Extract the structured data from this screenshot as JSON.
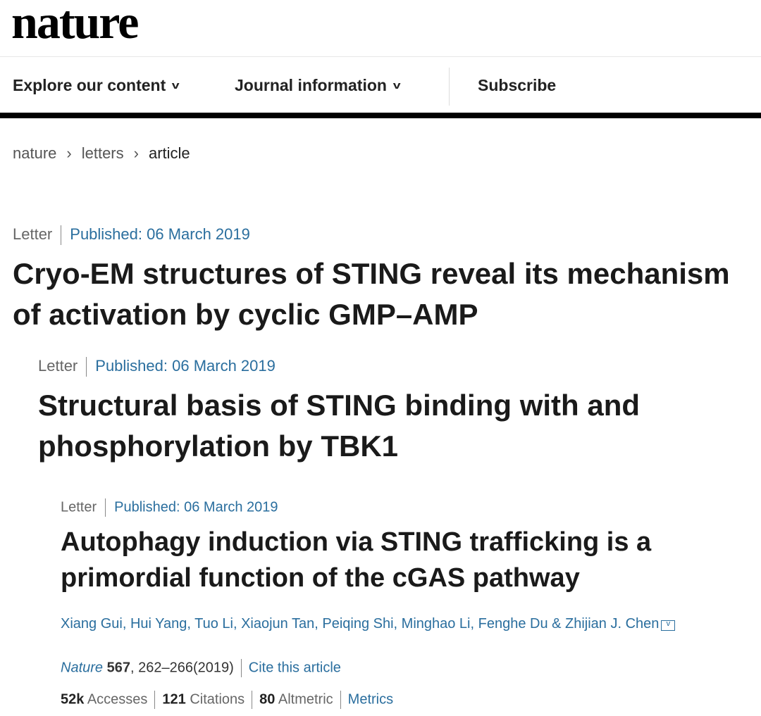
{
  "header": {
    "logo": "nature",
    "nav": [
      "Explore our content",
      "Journal information",
      "Subscribe"
    ]
  },
  "breadcrumb": [
    "nature",
    "letters",
    "article"
  ],
  "articles": [
    {
      "type": "Letter",
      "published": "Published: 06 March 2019",
      "title": "Cryo-EM structures of STING reveal its mechanism of activation by cyclic GMP–AMP"
    },
    {
      "type": "Letter",
      "published": "Published: 06 March 2019",
      "title": "Structural basis of STING binding with and phosphorylation by TBK1"
    },
    {
      "type": "Letter",
      "published": "Published: 06 March 2019",
      "title": "Autophagy induction via STING trafficking is a primordial function of the cGAS pathway"
    }
  ],
  "authors": "Xiang Gui, Hui Yang, Tuo Li, Xiaojun Tan, Peiqing Shi, Minghao Li, Fenghe Du & Zhijian J. Chen",
  "citation": {
    "journal": "Nature",
    "volume": "567",
    "pages": ", 262–266(2019)",
    "cite": "Cite this article"
  },
  "metrics": {
    "accesses_value": "52k",
    "accesses_label": "Accesses",
    "citations_value": "121",
    "citations_label": "Citations",
    "altmetric_value": "80",
    "altmetric_label": "Altmetric",
    "metrics_link": "Metrics"
  },
  "colors": {
    "link": "#2a6e9e"
  }
}
